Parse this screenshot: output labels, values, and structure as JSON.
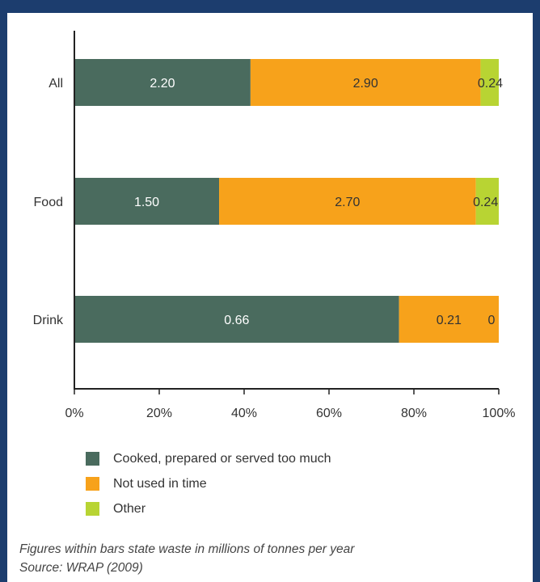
{
  "chart_data": {
    "type": "bar",
    "orientation": "horizontal",
    "stacked": "percent",
    "categories": [
      "All",
      "Food",
      "Drink"
    ],
    "series": [
      {
        "name": "Cooked, prepared or served too much",
        "color": "#4a6b5e",
        "values": [
          2.2,
          1.5,
          0.66
        ],
        "labels": [
          "2.20",
          "1.50",
          "0.66"
        ]
      },
      {
        "name": "Not used in time",
        "color": "#f7a21b",
        "values": [
          2.9,
          2.7,
          0.21
        ],
        "labels": [
          "2.90",
          "2.70",
          "0.21"
        ]
      },
      {
        "name": "Other",
        "color": "#b8d433",
        "values": [
          0.24,
          0.24,
          0
        ],
        "labels": [
          "0.24",
          "0.24",
          "0"
        ]
      }
    ],
    "percent_shares": [
      [
        41.5,
        54.2,
        4.3
      ],
      [
        34.1,
        60.5,
        5.4
      ],
      [
        76.5,
        23.5,
        0
      ]
    ],
    "x_ticks": [
      "0%",
      "20%",
      "40%",
      "60%",
      "80%",
      "100%"
    ],
    "xlim": [
      0,
      100
    ],
    "grid": false,
    "legend_position": "bottom"
  },
  "footnote": {
    "line1": "Figures within bars state waste in millions of tonnes per year",
    "line2": "Source: WRAP (2009)"
  }
}
